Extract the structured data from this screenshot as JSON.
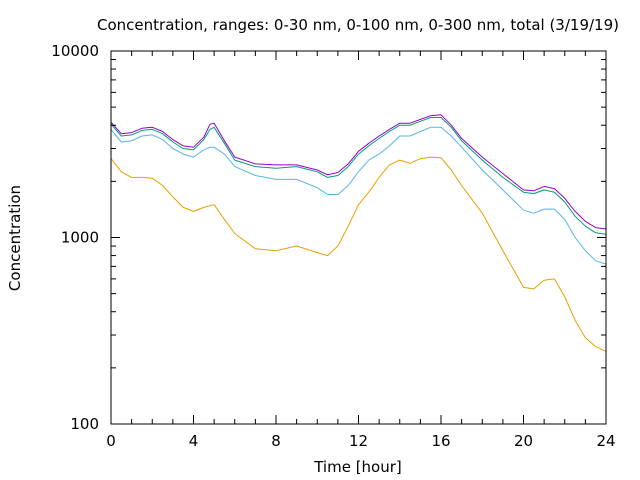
{
  "chart_data": {
    "type": "line",
    "title": "Concentration, ranges: 0-30 nm, 0-100 nm, 0-300 nm, total (3/19/19)",
    "xlabel": "Time [hour]",
    "ylabel": "Concentration",
    "xlim": [
      0,
      24
    ],
    "ylim": [
      100,
      10000
    ],
    "yscale": "log",
    "x_ticks": [
      0,
      4,
      8,
      12,
      16,
      20,
      24
    ],
    "y_ticks": [
      100,
      1000,
      10000
    ],
    "grid": false,
    "legend": "none",
    "x": [
      0,
      0.5,
      1,
      1.5,
      2,
      2.5,
      3,
      3.5,
      4,
      4.5,
      4.8,
      5,
      5.5,
      6,
      7,
      8,
      9,
      10,
      10.5,
      11,
      11.5,
      12,
      12.5,
      13,
      13.5,
      14,
      14.5,
      15,
      15.5,
      16,
      16.5,
      17,
      18,
      19,
      20,
      20.5,
      21,
      21.5,
      22,
      22.5,
      23,
      23.5,
      24
    ],
    "series": [
      {
        "color": "#e69f00",
        "values": [
          2650,
          2250,
          2100,
          2100,
          2080,
          1900,
          1650,
          1450,
          1380,
          1450,
          1480,
          1500,
          1250,
          1050,
          870,
          850,
          900,
          830,
          800,
          900,
          1150,
          1500,
          1750,
          2100,
          2450,
          2600,
          2500,
          2650,
          2700,
          2680,
          2300,
          1900,
          1350,
          850,
          540,
          530,
          590,
          600,
          480,
          360,
          290,
          260,
          245
        ]
      },
      {
        "color": "#56b4e9",
        "values": [
          3800,
          3250,
          3300,
          3500,
          3550,
          3350,
          3000,
          2800,
          2700,
          2950,
          3050,
          3050,
          2800,
          2400,
          2150,
          2050,
          2050,
          1850,
          1700,
          1700,
          1900,
          2250,
          2600,
          2800,
          3100,
          3500,
          3500,
          3700,
          3900,
          3900,
          3500,
          3050,
          2300,
          1800,
          1400,
          1350,
          1420,
          1420,
          1250,
          1000,
          850,
          750,
          720
        ]
      },
      {
        "color": "#009e73",
        "values": [
          4050,
          3500,
          3550,
          3750,
          3800,
          3600,
          3250,
          3000,
          2950,
          3350,
          3800,
          3900,
          3200,
          2600,
          2400,
          2350,
          2400,
          2250,
          2100,
          2150,
          2400,
          2800,
          3100,
          3400,
          3700,
          4000,
          4000,
          4200,
          4400,
          4400,
          3900,
          3300,
          2600,
          2100,
          1750,
          1720,
          1800,
          1750,
          1550,
          1300,
          1150,
          1060,
          1040
        ]
      },
      {
        "color": "#9400d3",
        "values": [
          4150,
          3600,
          3650,
          3850,
          3900,
          3700,
          3350,
          3100,
          3050,
          3450,
          4050,
          4100,
          3300,
          2700,
          2480,
          2450,
          2450,
          2300,
          2170,
          2230,
          2480,
          2900,
          3200,
          3500,
          3800,
          4100,
          4100,
          4300,
          4500,
          4550,
          4000,
          3400,
          2700,
          2200,
          1800,
          1780,
          1880,
          1830,
          1620,
          1380,
          1220,
          1130,
          1110
        ]
      }
    ]
  }
}
